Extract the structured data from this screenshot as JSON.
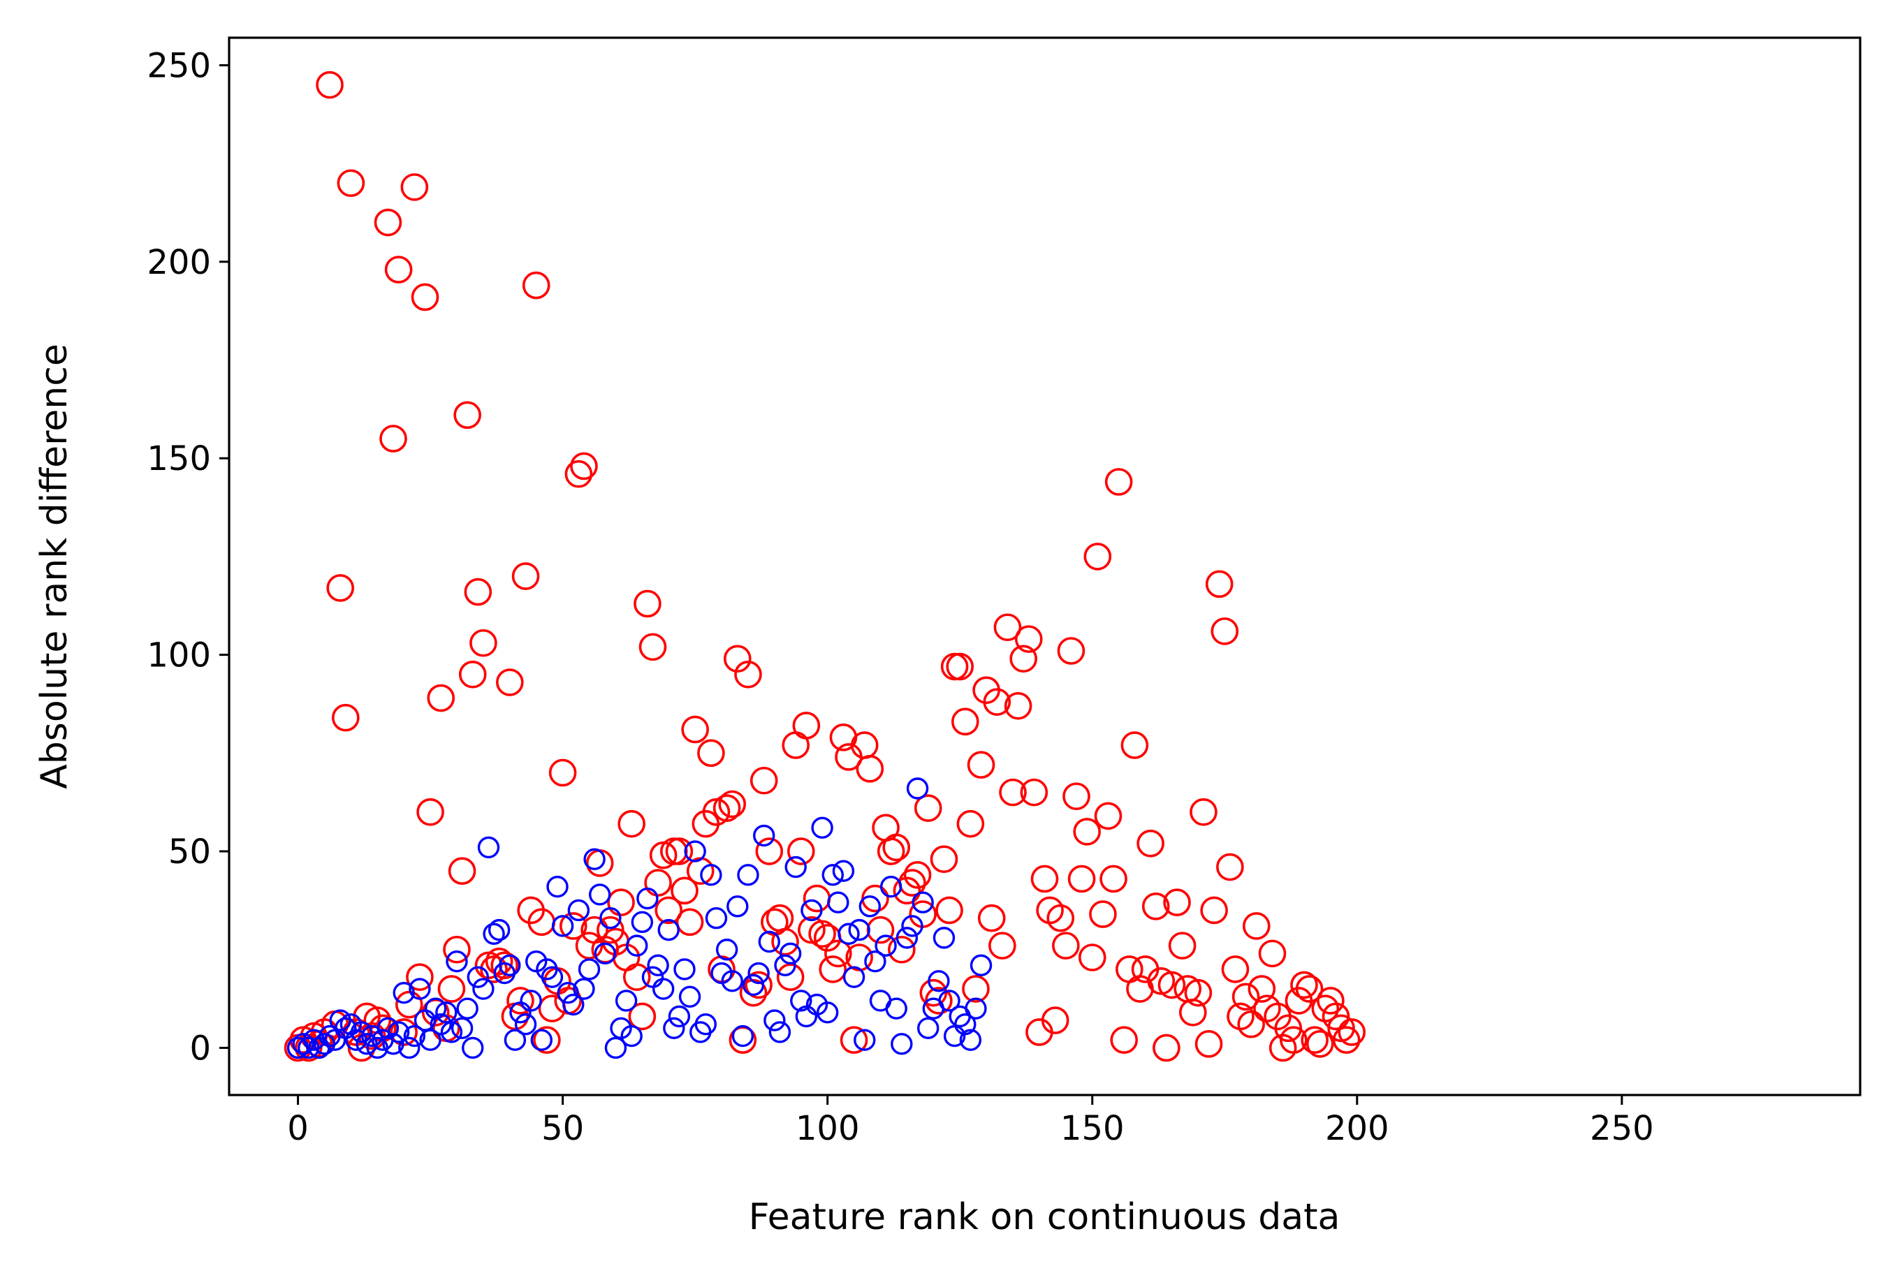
{
  "chart_data": {
    "type": "scatter",
    "title": "",
    "xlabel": "Feature rank on continuous data",
    "ylabel": "Absolute rank difference",
    "xlim": [
      -13,
      295
    ],
    "ylim": [
      -12,
      257
    ],
    "xticks": [
      0,
      50,
      100,
      150,
      200,
      250
    ],
    "yticks": [
      0,
      50,
      100,
      150,
      200,
      250
    ],
    "grid": false,
    "legend": "none",
    "series": [
      {
        "color": "#ff0000",
        "marker": "open-circle-large",
        "points": [
          [
            0,
            0
          ],
          [
            1,
            2
          ],
          [
            2,
            0
          ],
          [
            3,
            3
          ],
          [
            4,
            1
          ],
          [
            5,
            4
          ],
          [
            6,
            245
          ],
          [
            7,
            6
          ],
          [
            8,
            117
          ],
          [
            9,
            84
          ],
          [
            10,
            220
          ],
          [
            11,
            4
          ],
          [
            12,
            0
          ],
          [
            13,
            8
          ],
          [
            14,
            3
          ],
          [
            15,
            7
          ],
          [
            16,
            5
          ],
          [
            17,
            210
          ],
          [
            18,
            155
          ],
          [
            19,
            198
          ],
          [
            20,
            4
          ],
          [
            21,
            11
          ],
          [
            22,
            219
          ],
          [
            23,
            18
          ],
          [
            24,
            191
          ],
          [
            25,
            60
          ],
          [
            26,
            9
          ],
          [
            27,
            89
          ],
          [
            28,
            5
          ],
          [
            29,
            15
          ],
          [
            30,
            25
          ],
          [
            31,
            45
          ],
          [
            32,
            161
          ],
          [
            33,
            95
          ],
          [
            34,
            116
          ],
          [
            35,
            103
          ],
          [
            36,
            21
          ],
          [
            37,
            20
          ],
          [
            38,
            22
          ],
          [
            39,
            21
          ],
          [
            40,
            93
          ],
          [
            41,
            8
          ],
          [
            42,
            12
          ],
          [
            43,
            120
          ],
          [
            44,
            35
          ],
          [
            45,
            194
          ],
          [
            46,
            32
          ],
          [
            47,
            2
          ],
          [
            48,
            10
          ],
          [
            49,
            17
          ],
          [
            50,
            70
          ],
          [
            51,
            12
          ],
          [
            52,
            31
          ],
          [
            53,
            146
          ],
          [
            54,
            148
          ],
          [
            55,
            26
          ],
          [
            56,
            30
          ],
          [
            57,
            47
          ],
          [
            58,
            25
          ],
          [
            59,
            30
          ],
          [
            60,
            27
          ],
          [
            61,
            37
          ],
          [
            62,
            23
          ],
          [
            63,
            57
          ],
          [
            64,
            18
          ],
          [
            65,
            8
          ],
          [
            66,
            113
          ],
          [
            67,
            102
          ],
          [
            68,
            42
          ],
          [
            69,
            49
          ],
          [
            70,
            35
          ],
          [
            71,
            50
          ],
          [
            72,
            50
          ],
          [
            73,
            40
          ],
          [
            74,
            32
          ],
          [
            75,
            81
          ],
          [
            76,
            45
          ],
          [
            77,
            57
          ],
          [
            78,
            75
          ],
          [
            79,
            60
          ],
          [
            80,
            20
          ],
          [
            81,
            61
          ],
          [
            82,
            62
          ],
          [
            83,
            99
          ],
          [
            84,
            2
          ],
          [
            85,
            95
          ],
          [
            86,
            14
          ],
          [
            87,
            16
          ],
          [
            88,
            68
          ],
          [
            89,
            50
          ],
          [
            90,
            32
          ],
          [
            91,
            33
          ],
          [
            92,
            27
          ],
          [
            93,
            18
          ],
          [
            94,
            77
          ],
          [
            95,
            50
          ],
          [
            96,
            82
          ],
          [
            97,
            30
          ],
          [
            98,
            38
          ],
          [
            99,
            29
          ],
          [
            100,
            28
          ],
          [
            101,
            20
          ],
          [
            102,
            24
          ],
          [
            103,
            79
          ],
          [
            104,
            74
          ],
          [
            105,
            2
          ],
          [
            106,
            23
          ],
          [
            107,
            77
          ],
          [
            108,
            71
          ],
          [
            109,
            38
          ],
          [
            110,
            30
          ],
          [
            111,
            56
          ],
          [
            112,
            50
          ],
          [
            113,
            51
          ],
          [
            114,
            25
          ],
          [
            115,
            40
          ],
          [
            116,
            42
          ],
          [
            117,
            44
          ],
          [
            118,
            34
          ],
          [
            119,
            61
          ],
          [
            120,
            14
          ],
          [
            121,
            12
          ],
          [
            122,
            48
          ],
          [
            123,
            35
          ],
          [
            124,
            97
          ],
          [
            125,
            97
          ],
          [
            126,
            83
          ],
          [
            127,
            57
          ],
          [
            128,
            15
          ],
          [
            129,
            72
          ],
          [
            130,
            91
          ],
          [
            131,
            33
          ],
          [
            132,
            88
          ],
          [
            133,
            26
          ],
          [
            134,
            107
          ],
          [
            135,
            65
          ],
          [
            136,
            87
          ],
          [
            137,
            99
          ],
          [
            138,
            104
          ],
          [
            139,
            65
          ],
          [
            140,
            4
          ],
          [
            141,
            43
          ],
          [
            142,
            35
          ],
          [
            143,
            7
          ],
          [
            144,
            33
          ],
          [
            145,
            26
          ],
          [
            146,
            101
          ],
          [
            147,
            64
          ],
          [
            148,
            43
          ],
          [
            149,
            55
          ],
          [
            150,
            23
          ],
          [
            151,
            125
          ],
          [
            152,
            34
          ],
          [
            153,
            59
          ],
          [
            154,
            43
          ],
          [
            155,
            144
          ],
          [
            156,
            2
          ],
          [
            157,
            20
          ],
          [
            158,
            77
          ],
          [
            159,
            15
          ],
          [
            160,
            20
          ],
          [
            161,
            52
          ],
          [
            162,
            36
          ],
          [
            163,
            17
          ],
          [
            164,
            0
          ],
          [
            165,
            16
          ],
          [
            166,
            37
          ],
          [
            167,
            26
          ],
          [
            168,
            15
          ],
          [
            169,
            9
          ],
          [
            170,
            14
          ],
          [
            171,
            60
          ],
          [
            172,
            1
          ],
          [
            173,
            35
          ],
          [
            174,
            118
          ],
          [
            175,
            106
          ],
          [
            176,
            46
          ],
          [
            177,
            20
          ],
          [
            178,
            8
          ],
          [
            179,
            13
          ],
          [
            180,
            6
          ],
          [
            181,
            31
          ],
          [
            182,
            15
          ],
          [
            183,
            10
          ],
          [
            184,
            24
          ],
          [
            185,
            8
          ],
          [
            186,
            0
          ],
          [
            187,
            5
          ],
          [
            188,
            2
          ],
          [
            189,
            12
          ],
          [
            190,
            16
          ],
          [
            191,
            15
          ],
          [
            192,
            2
          ],
          [
            193,
            1
          ],
          [
            194,
            10
          ],
          [
            195,
            12
          ],
          [
            196,
            8
          ],
          [
            197,
            5
          ],
          [
            198,
            2
          ],
          [
            199,
            4
          ]
        ]
      },
      {
        "color": "#0000ff",
        "marker": "open-circle-small",
        "points": [
          [
            0,
            0
          ],
          [
            1,
            1
          ],
          [
            2,
            0
          ],
          [
            3,
            2
          ],
          [
            4,
            0
          ],
          [
            5,
            1
          ],
          [
            6,
            3
          ],
          [
            7,
            2
          ],
          [
            8,
            7
          ],
          [
            9,
            5
          ],
          [
            10,
            6
          ],
          [
            11,
            2
          ],
          [
            12,
            4
          ],
          [
            13,
            1
          ],
          [
            14,
            3
          ],
          [
            15,
            0
          ],
          [
            16,
            2
          ],
          [
            17,
            5
          ],
          [
            18,
            1
          ],
          [
            19,
            4
          ],
          [
            20,
            14
          ],
          [
            21,
            0
          ],
          [
            22,
            3
          ],
          [
            23,
            15
          ],
          [
            24,
            7
          ],
          [
            25,
            2
          ],
          [
            26,
            10
          ],
          [
            27,
            6
          ],
          [
            28,
            9
          ],
          [
            29,
            4
          ],
          [
            30,
            22
          ],
          [
            31,
            5
          ],
          [
            32,
            10
          ],
          [
            33,
            0
          ],
          [
            34,
            18
          ],
          [
            35,
            15
          ],
          [
            36,
            51
          ],
          [
            37,
            29
          ],
          [
            38,
            30
          ],
          [
            39,
            19
          ],
          [
            40,
            21
          ],
          [
            41,
            2
          ],
          [
            42,
            9
          ],
          [
            43,
            6
          ],
          [
            44,
            12
          ],
          [
            45,
            22
          ],
          [
            46,
            2
          ],
          [
            47,
            20
          ],
          [
            48,
            18
          ],
          [
            49,
            41
          ],
          [
            50,
            31
          ],
          [
            51,
            14
          ],
          [
            52,
            11
          ],
          [
            53,
            35
          ],
          [
            54,
            15
          ],
          [
            55,
            20
          ],
          [
            56,
            48
          ],
          [
            57,
            39
          ],
          [
            58,
            24
          ],
          [
            59,
            33
          ],
          [
            60,
            0
          ],
          [
            61,
            5
          ],
          [
            62,
            12
          ],
          [
            63,
            3
          ],
          [
            64,
            26
          ],
          [
            65,
            32
          ],
          [
            66,
            38
          ],
          [
            67,
            18
          ],
          [
            68,
            21
          ],
          [
            69,
            15
          ],
          [
            70,
            30
          ],
          [
            71,
            5
          ],
          [
            72,
            8
          ],
          [
            73,
            20
          ],
          [
            74,
            13
          ],
          [
            75,
            50
          ],
          [
            76,
            4
          ],
          [
            77,
            6
          ],
          [
            78,
            44
          ],
          [
            79,
            33
          ],
          [
            80,
            19
          ],
          [
            81,
            25
          ],
          [
            82,
            17
          ],
          [
            83,
            36
          ],
          [
            84,
            3
          ],
          [
            85,
            44
          ],
          [
            86,
            16
          ],
          [
            87,
            19
          ],
          [
            88,
            54
          ],
          [
            89,
            27
          ],
          [
            90,
            7
          ],
          [
            91,
            4
          ],
          [
            92,
            21
          ],
          [
            93,
            24
          ],
          [
            94,
            46
          ],
          [
            95,
            12
          ],
          [
            96,
            8
          ],
          [
            97,
            35
          ],
          [
            98,
            11
          ],
          [
            99,
            56
          ],
          [
            100,
            9
          ],
          [
            101,
            44
          ],
          [
            102,
            37
          ],
          [
            103,
            45
          ],
          [
            104,
            29
          ],
          [
            105,
            18
          ],
          [
            106,
            30
          ],
          [
            107,
            2
          ],
          [
            108,
            36
          ],
          [
            109,
            22
          ],
          [
            110,
            12
          ],
          [
            111,
            26
          ],
          [
            112,
            41
          ],
          [
            113,
            10
          ],
          [
            114,
            1
          ],
          [
            115,
            28
          ],
          [
            116,
            31
          ],
          [
            117,
            66
          ],
          [
            118,
            37
          ],
          [
            119,
            5
          ],
          [
            120,
            10
          ],
          [
            121,
            17
          ],
          [
            122,
            28
          ],
          [
            123,
            12
          ],
          [
            124,
            3
          ],
          [
            125,
            8
          ],
          [
            126,
            6
          ],
          [
            127,
            2
          ],
          [
            128,
            10
          ],
          [
            129,
            21
          ]
        ]
      }
    ]
  }
}
